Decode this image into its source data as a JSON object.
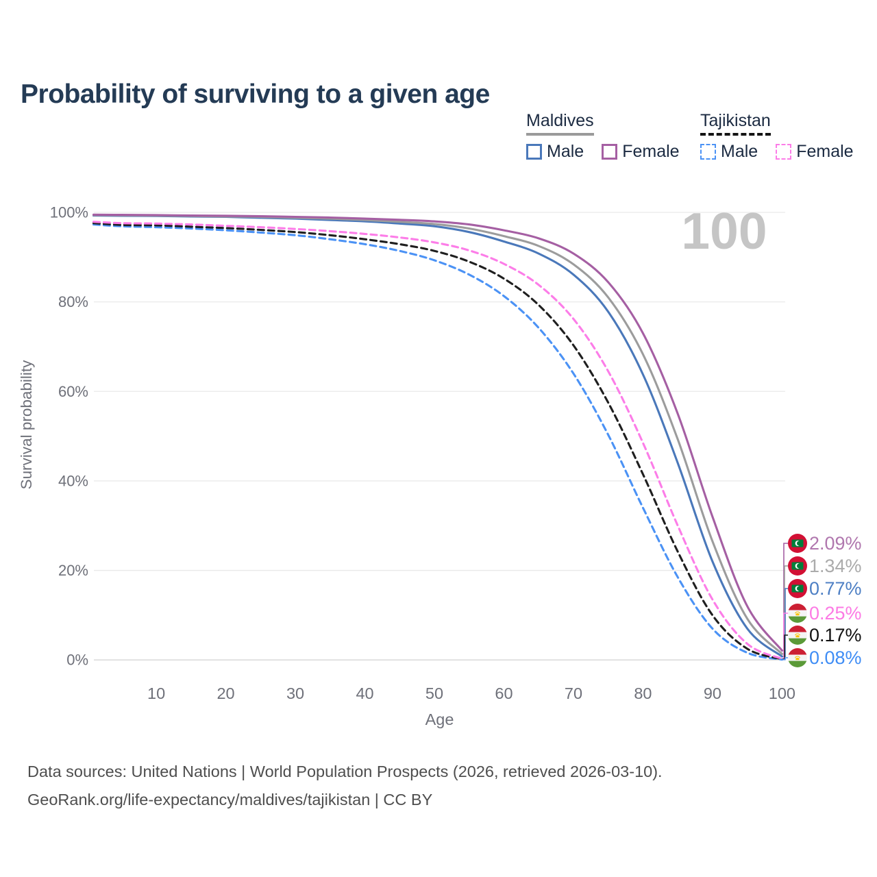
{
  "title": "Probability of surviving to a given age",
  "hover_age_indicator": "100",
  "colors": {
    "title_text": "#243b55",
    "axis_text": "#6e7079",
    "gridline": "#e9e9e9",
    "baseline": "#d5d5d5",
    "watermark": "#c5c5c5",
    "maldives_male": "#4a78ba",
    "maldives_female": "#a55fa3",
    "maldives_all": "#9c9c9c",
    "tajikistan_male": "#4b92f5",
    "tajikistan_female": "#fc7de8",
    "tajikistan_all": "#1f1f1f"
  },
  "legend": {
    "groups": [
      {
        "label": "Maldives",
        "line_style": "solid",
        "underline_color": "#9a9a9a",
        "items": [
          {
            "label": "Male",
            "color": "#4a78ba"
          },
          {
            "label": "Female",
            "color": "#a55fa3"
          }
        ]
      },
      {
        "label": "Tajikistan",
        "line_style": "dashed",
        "underline_color": "#141414",
        "items": [
          {
            "label": "Male",
            "color": "#4b92f5"
          },
          {
            "label": "Female",
            "color": "#fc7de8"
          }
        ]
      }
    ]
  },
  "chart_data": {
    "type": "line",
    "title": "Probability of surviving to a given age",
    "xlabel": "Age",
    "ylabel": "Survival probability",
    "xlim": [
      0,
      100
    ],
    "ylim": [
      0,
      100
    ],
    "x_ticks": [
      10,
      20,
      30,
      40,
      50,
      60,
      70,
      80,
      90,
      100
    ],
    "y_ticks": [
      "0%",
      "20%",
      "40%",
      "60%",
      "80%",
      "100%"
    ],
    "grid": "horizontal-only",
    "legend_position": "top-right",
    "watermark_value": "100",
    "x": [
      0,
      5,
      10,
      15,
      20,
      25,
      30,
      35,
      40,
      45,
      50,
      55,
      60,
      65,
      70,
      75,
      80,
      85,
      90,
      95,
      100
    ],
    "series": [
      {
        "name": "Maldives Female",
        "country": "Maldives",
        "group": "Female",
        "color": "#a55fa3",
        "line_style": "solid",
        "flag": "maldives",
        "end_label": "2.09%",
        "end_label_color": "#b077ae",
        "values": [
          99.5,
          99.45,
          99.4,
          99.3,
          99.25,
          99.15,
          99.0,
          98.85,
          98.6,
          98.35,
          98.0,
          97.3,
          96.0,
          94.2,
          90.8,
          84.4,
          73.0,
          55.0,
          32.0,
          12.0,
          2.09
        ]
      },
      {
        "name": "Maldives",
        "country": "Maldives",
        "group": "All",
        "color": "#9c9c9c",
        "line_style": "solid",
        "flag": "maldives",
        "end_label": "1.34%",
        "end_label_color": "#ababab",
        "values": [
          99.4,
          99.35,
          99.3,
          99.2,
          99.1,
          99.0,
          98.8,
          98.6,
          98.3,
          97.9,
          97.4,
          96.4,
          94.7,
          92.5,
          88.4,
          81.0,
          68.3,
          49.3,
          26.5,
          9.2,
          1.34
        ]
      },
      {
        "name": "Maldives Male",
        "country": "Maldives",
        "group": "Male",
        "color": "#4a78ba",
        "line_style": "solid",
        "flag": "maldives",
        "end_label": "0.77%",
        "end_label_color": "#4d7fc4",
        "values": [
          99.3,
          99.25,
          99.2,
          99.1,
          99.0,
          98.8,
          98.6,
          98.3,
          98.0,
          97.5,
          96.9,
          95.6,
          93.5,
          90.8,
          86.1,
          77.8,
          63.8,
          44.0,
          22.0,
          7.0,
          0.77
        ]
      },
      {
        "name": "Tajikistan Female",
        "country": "Tajikistan",
        "group": "Female",
        "color": "#fc7de8",
        "line_style": "dashed",
        "flag": "tajikistan",
        "end_label": "0.25%",
        "end_label_color": "#fc7ae4",
        "values": [
          97.9,
          97.6,
          97.5,
          97.3,
          97.0,
          96.7,
          96.3,
          95.8,
          95.2,
          94.4,
          93.3,
          91.5,
          88.5,
          83.8,
          76.2,
          64.5,
          48.5,
          30.0,
          13.5,
          3.6,
          0.25
        ]
      },
      {
        "name": "Tajikistan",
        "country": "Tajikistan",
        "group": "All",
        "color": "#1f1f1f",
        "line_style": "dashed",
        "flag": "tajikistan",
        "end_label": "0.17%",
        "end_label_color": "#111111",
        "values": [
          97.6,
          97.2,
          97.1,
          96.8,
          96.5,
          96.1,
          95.6,
          94.9,
          94.0,
          92.9,
          91.4,
          89.0,
          85.2,
          79.3,
          70.3,
          57.5,
          41.5,
          24.2,
          10.0,
          2.5,
          0.17
        ]
      },
      {
        "name": "Tajikistan Male",
        "country": "Tajikistan",
        "group": "Male",
        "color": "#4b92f5",
        "line_style": "dashed",
        "flag": "tajikistan",
        "end_label": "0.08%",
        "end_label_color": "#3f8df5",
        "values": [
          97.3,
          96.9,
          96.7,
          96.4,
          96.0,
          95.5,
          94.9,
          94.0,
          92.9,
          91.4,
          89.3,
          86.1,
          81.3,
          74.2,
          64.0,
          50.3,
          34.0,
          18.5,
          7.0,
          1.6,
          0.08
        ]
      }
    ]
  },
  "footer": {
    "line1": "Data sources: United Nations | World Population Prospects (2026, retrieved 2026-03-10).",
    "line2": "GeoRank.org/life-expectancy/maldives/tajikistan | CC BY"
  }
}
